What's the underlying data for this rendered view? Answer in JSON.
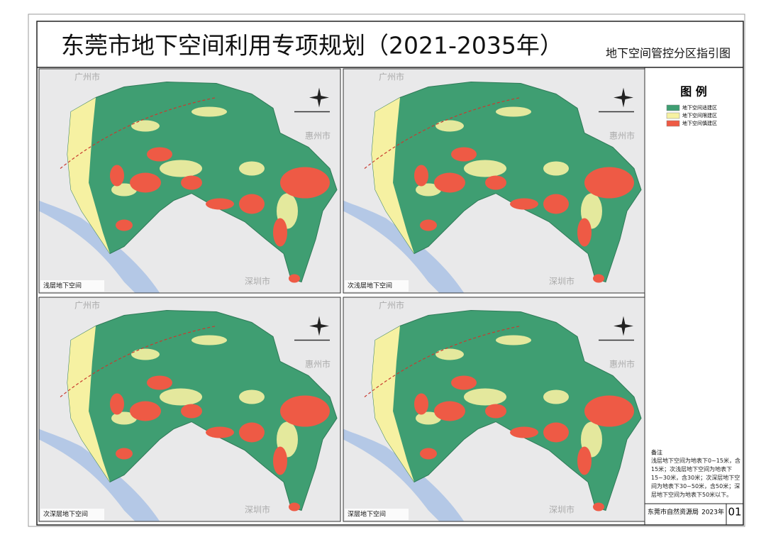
{
  "header": {
    "title": "东莞市地下空间利用专项规划（2021-2035年）",
    "subtitle": "地下空间管控分区指引图"
  },
  "cities": [
    "广州市",
    "惠州市",
    "深圳市"
  ],
  "panels": [
    {
      "label": "浅层地下空间"
    },
    {
      "label": "次浅层地下空间"
    },
    {
      "label": "次深层地下空间"
    },
    {
      "label": "深层地下空间"
    }
  ],
  "legend": {
    "title": "图  例",
    "items": [
      {
        "label": "地下空间适建区",
        "color": "#3f9e72"
      },
      {
        "label": "地下空间限建区",
        "color": "#f6f1a2"
      },
      {
        "label": "地下空间慎建区",
        "color": "#ee5a45"
      }
    ]
  },
  "notes": {
    "title": "备注",
    "text": "浅层地下空间为地表下0~15米，含15米；次浅层地下空间为地表下15~30米，含30米；次深层地下空间为地表下30~50米，含50米；深层地下空间为地表下50米以下。"
  },
  "footer": {
    "agency": "东莞市自然资源局",
    "year": "2023年",
    "sheet": "01"
  }
}
